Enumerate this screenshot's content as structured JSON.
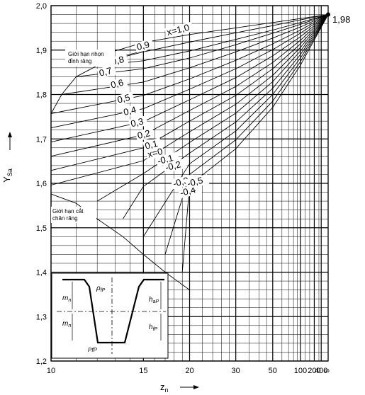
{
  "chart_data": {
    "type": "line",
    "title": "",
    "xlabel": "z",
    "xlabel_sub": "n",
    "ylabel": "Y",
    "ylabel_sub": "Sa",
    "x_scale": "reciprocal",
    "xlim": [
      10,
      1000000
    ],
    "ylim": [
      1.2,
      2.0
    ],
    "x_tick_labels": [
      "10",
      "15",
      "20",
      "30",
      "50",
      "100",
      "200",
      "400",
      "∞"
    ],
    "x_tick_values": [
      10,
      15,
      20,
      30,
      50,
      100,
      200,
      400,
      1000000
    ],
    "y_ticks": [
      1.2,
      1.3,
      1.4,
      1.5,
      1.6,
      1.7,
      1.8,
      1.9,
      2.0
    ],
    "y_tick_labels": [
      "1,2",
      "1,3",
      "1,4",
      "1,5",
      "1,6",
      "1,7",
      "1,8",
      "1,9",
      "2,0"
    ],
    "grid": true,
    "convergence_value": 1.98,
    "convergence_label": "1,98",
    "series": [
      {
        "name": "x=1,0",
        "points": [
          [
            12,
            1.886
          ],
          [
            15,
            1.917
          ],
          [
            20,
            1.935
          ],
          [
            30,
            1.95
          ],
          [
            50,
            1.962
          ],
          [
            100,
            1.971
          ],
          [
            1000000,
            1.98
          ]
        ]
      },
      {
        "name": "0,9",
        "points": [
          [
            12,
            1.87
          ],
          [
            15,
            1.896
          ],
          [
            20,
            1.918
          ],
          [
            30,
            1.939
          ],
          [
            50,
            1.955
          ],
          [
            100,
            1.968
          ],
          [
            1000000,
            1.98
          ]
        ]
      },
      {
        "name": "0,8",
        "points": [
          [
            12,
            1.865
          ],
          [
            15,
            1.876
          ],
          [
            20,
            1.898
          ],
          [
            30,
            1.924
          ],
          [
            50,
            1.945
          ],
          [
            100,
            1.962
          ],
          [
            1000000,
            1.98
          ]
        ]
      },
      {
        "name": "0,7",
        "points": [
          [
            11,
            1.84
          ],
          [
            15,
            1.858
          ],
          [
            20,
            1.882
          ],
          [
            30,
            1.912
          ],
          [
            50,
            1.938
          ],
          [
            100,
            1.958
          ],
          [
            1000000,
            1.98
          ]
        ]
      },
      {
        "name": "0,6",
        "points": [
          [
            10.4,
            1.8
          ],
          [
            15,
            1.828
          ],
          [
            20,
            1.86
          ],
          [
            30,
            1.896
          ],
          [
            50,
            1.927
          ],
          [
            100,
            1.952
          ],
          [
            1000000,
            1.98
          ]
        ]
      },
      {
        "name": "0,5",
        "points": [
          [
            10,
            1.757
          ],
          [
            15,
            1.798
          ],
          [
            20,
            1.835
          ],
          [
            30,
            1.877
          ],
          [
            50,
            1.914
          ],
          [
            100,
            1.945
          ],
          [
            1000000,
            1.98
          ]
        ]
      },
      {
        "name": "0,4",
        "points": [
          [
            10,
            1.725
          ],
          [
            15,
            1.768
          ],
          [
            20,
            1.812
          ],
          [
            30,
            1.858
          ],
          [
            50,
            1.901
          ],
          [
            100,
            1.938
          ],
          [
            1000000,
            1.98
          ]
        ]
      },
      {
        "name": "0,3",
        "points": [
          [
            10,
            1.693
          ],
          [
            15,
            1.739
          ],
          [
            20,
            1.788
          ],
          [
            30,
            1.838
          ],
          [
            50,
            1.887
          ],
          [
            100,
            1.93
          ],
          [
            1000000,
            1.98
          ]
        ]
      },
      {
        "name": "0,2",
        "points": [
          [
            10,
            1.661
          ],
          [
            15,
            1.709
          ],
          [
            20,
            1.764
          ],
          [
            30,
            1.818
          ],
          [
            50,
            1.872
          ],
          [
            100,
            1.922
          ],
          [
            1000000,
            1.98
          ]
        ]
      },
      {
        "name": "0,1",
        "points": [
          [
            10,
            1.629
          ],
          [
            15,
            1.68
          ],
          [
            20,
            1.74
          ],
          [
            30,
            1.798
          ],
          [
            50,
            1.858
          ],
          [
            100,
            1.914
          ],
          [
            1000000,
            1.98
          ]
        ]
      },
      {
        "name": "x=0",
        "points": [
          [
            10,
            1.596
          ],
          [
            15,
            1.651
          ],
          [
            20,
            1.716
          ],
          [
            30,
            1.778
          ],
          [
            50,
            1.843
          ],
          [
            100,
            1.906
          ],
          [
            1000000,
            1.98
          ]
        ]
      },
      {
        "name": "-0,1",
        "points": [
          [
            12,
            1.56
          ],
          [
            15,
            1.622
          ],
          [
            20,
            1.692
          ],
          [
            30,
            1.758
          ],
          [
            50,
            1.829
          ],
          [
            100,
            1.898
          ],
          [
            1000000,
            1.98
          ]
        ]
      },
      {
        "name": "-0,2",
        "points": [
          [
            13.5,
            1.52
          ],
          [
            15,
            1.593
          ],
          [
            20,
            1.668
          ],
          [
            30,
            1.738
          ],
          [
            50,
            1.814
          ],
          [
            100,
            1.89
          ],
          [
            1000000,
            1.98
          ]
        ]
      },
      {
        "name": "-0,3",
        "points": [
          [
            15,
            1.48
          ],
          [
            20,
            1.644
          ],
          [
            30,
            1.718
          ],
          [
            50,
            1.8
          ],
          [
            100,
            1.882
          ],
          [
            1000000,
            1.98
          ]
        ]
      },
      {
        "name": "-0,4",
        "points": [
          [
            17,
            1.44
          ],
          [
            20,
            1.62
          ],
          [
            30,
            1.698
          ],
          [
            50,
            1.785
          ],
          [
            100,
            1.874
          ],
          [
            1000000,
            1.98
          ]
        ]
      },
      {
        "name": "-0,5",
        "points": [
          [
            19,
            1.4
          ],
          [
            20,
            1.596
          ],
          [
            30,
            1.678
          ],
          [
            50,
            1.771
          ],
          [
            100,
            1.866
          ],
          [
            1000000,
            1.98
          ]
        ]
      }
    ],
    "boundaries": [
      {
        "name": "Giới hạn nhọn đỉnh răng",
        "points": [
          [
            10,
            1.757
          ],
          [
            10.4,
            1.8
          ],
          [
            11,
            1.84
          ],
          [
            12,
            1.865
          ],
          [
            13,
            1.882
          ],
          [
            15,
            1.898
          ]
        ]
      },
      {
        "name": "Giới hạn cắt chân răng",
        "points": [
          [
            10,
            1.576
          ],
          [
            11,
            1.555
          ],
          [
            12,
            1.52
          ],
          [
            13.5,
            1.48
          ],
          [
            15,
            1.44
          ],
          [
            17,
            1.4
          ],
          [
            20,
            1.36
          ]
        ]
      }
    ],
    "inset": {
      "labels": [
        "m",
        "m",
        "ρ",
        "h",
        "h",
        "PfP"
      ],
      "subs": [
        "n",
        "n",
        "fP",
        "aP",
        "fP",
        ""
      ]
    }
  }
}
